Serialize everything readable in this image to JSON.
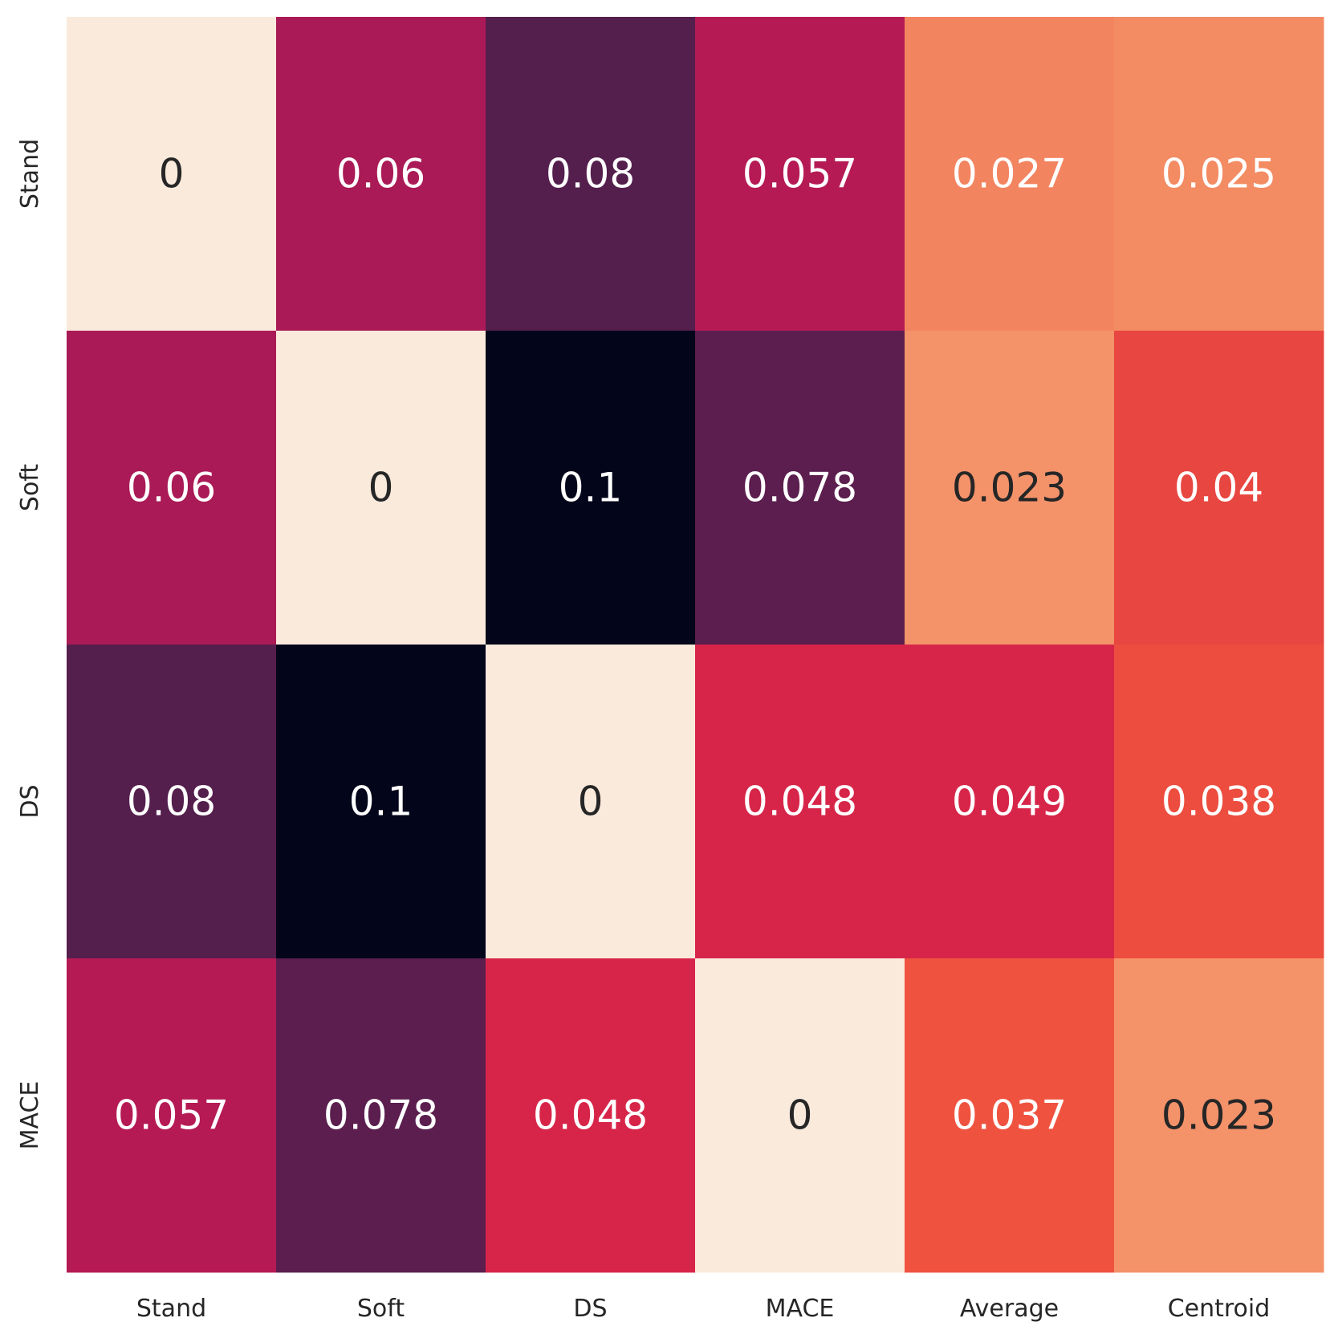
{
  "chart_data": {
    "type": "heatmap",
    "title": "",
    "xlabel": "",
    "ylabel": "",
    "x_categories": [
      "Stand",
      "Soft",
      "DS",
      "MACE",
      "Average",
      "Centroid"
    ],
    "y_categories": [
      "Stand",
      "Soft",
      "DS",
      "MACE"
    ],
    "values": [
      [
        0,
        0.06,
        0.08,
        0.057,
        0.027,
        0.025
      ],
      [
        0.06,
        0,
        0.1,
        0.078,
        0.023,
        0.04
      ],
      [
        0.08,
        0.1,
        0,
        0.048,
        0.049,
        0.038
      ],
      [
        0.057,
        0.078,
        0.048,
        0,
        0.037,
        0.023
      ]
    ],
    "labels": [
      [
        "0",
        "0.06",
        "0.08",
        "0.057",
        "0.027",
        "0.025"
      ],
      [
        "0.06",
        "0",
        "0.1",
        "0.078",
        "0.023",
        "0.04"
      ],
      [
        "0.08",
        "0.1",
        "0",
        "0.048",
        "0.049",
        "0.038"
      ],
      [
        "0.057",
        "0.078",
        "0.048",
        "0",
        "0.037",
        "0.023"
      ]
    ],
    "colorbar": false,
    "colormap": "rocket",
    "vmin": 0,
    "vmax": 0.1,
    "cell_colors": [
      [
        "#faeadc",
        "#aa1a56",
        "#541f4d",
        "#b51a54",
        "#f38460",
        "#f38b63"
      ],
      [
        "#aa1a56",
        "#faeadc",
        "#03051a",
        "#5b1e4e",
        "#f4926a",
        "#e84640"
      ],
      [
        "#541f4d",
        "#03051a",
        "#faeadc",
        "#d72549",
        "#d72549",
        "#ec4d3f"
      ],
      [
        "#b51a54",
        "#5b1e4e",
        "#d72549",
        "#faeadc",
        "#ef5340",
        "#f4926a"
      ]
    ],
    "text_colors": [
      [
        "#262626",
        "#ffffff",
        "#ffffff",
        "#ffffff",
        "#ffffff",
        "#ffffff"
      ],
      [
        "#ffffff",
        "#262626",
        "#ffffff",
        "#ffffff",
        "#262626",
        "#ffffff"
      ],
      [
        "#ffffff",
        "#ffffff",
        "#262626",
        "#ffffff",
        "#ffffff",
        "#ffffff"
      ],
      [
        "#ffffff",
        "#ffffff",
        "#ffffff",
        "#262626",
        "#ffffff",
        "#262626"
      ]
    ]
  }
}
